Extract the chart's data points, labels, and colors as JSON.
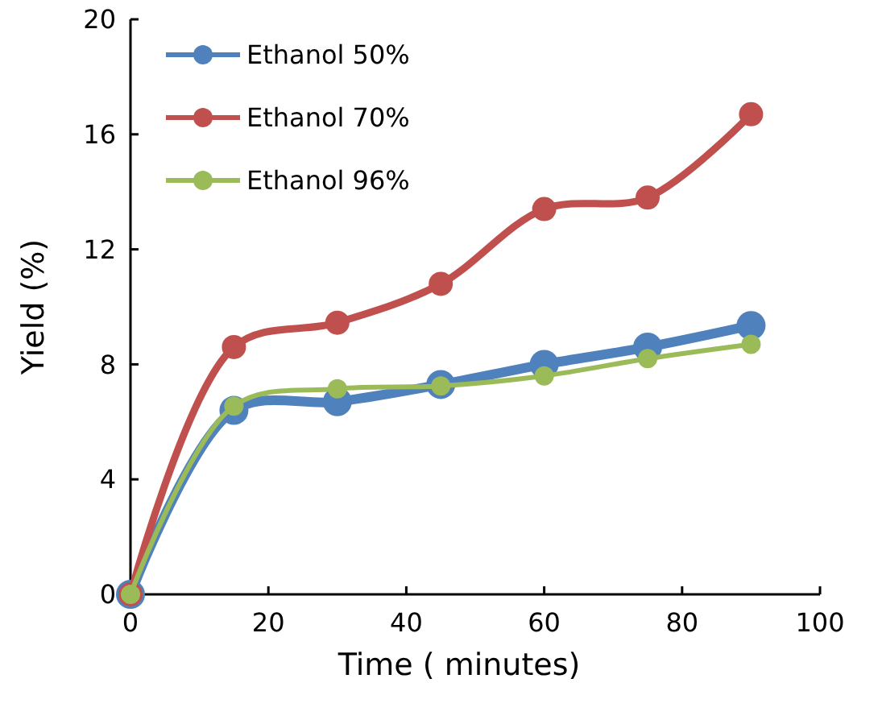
{
  "chart_data": {
    "type": "line",
    "xlabel": "Time ( minutes)",
    "ylabel": "Yield (%)",
    "x": [
      0,
      15,
      30,
      45,
      60,
      75,
      90
    ],
    "series": [
      {
        "name": "Ethanol 50%",
        "color": "#4f81bd",
        "values": [
          0,
          6.4,
          6.7,
          7.3,
          8.0,
          8.6,
          9.35
        ]
      },
      {
        "name": "Ethanol 70%",
        "color": "#c0504d",
        "values": [
          0,
          8.6,
          9.45,
          10.8,
          13.4,
          13.8,
          16.7
        ]
      },
      {
        "name": "Ethanol 96%",
        "color": "#9bbb59",
        "values": [
          0,
          6.55,
          7.15,
          7.25,
          7.6,
          8.2,
          8.7
        ]
      }
    ],
    "xlim": [
      0,
      100
    ],
    "xticks": [
      0,
      20,
      40,
      60,
      80,
      100
    ],
    "ylim": [
      0,
      20
    ],
    "yticks": [
      0,
      4,
      8,
      12,
      16,
      20
    ],
    "grid": false,
    "legend": "top left",
    "marker": "circle",
    "line_style": "solid"
  }
}
